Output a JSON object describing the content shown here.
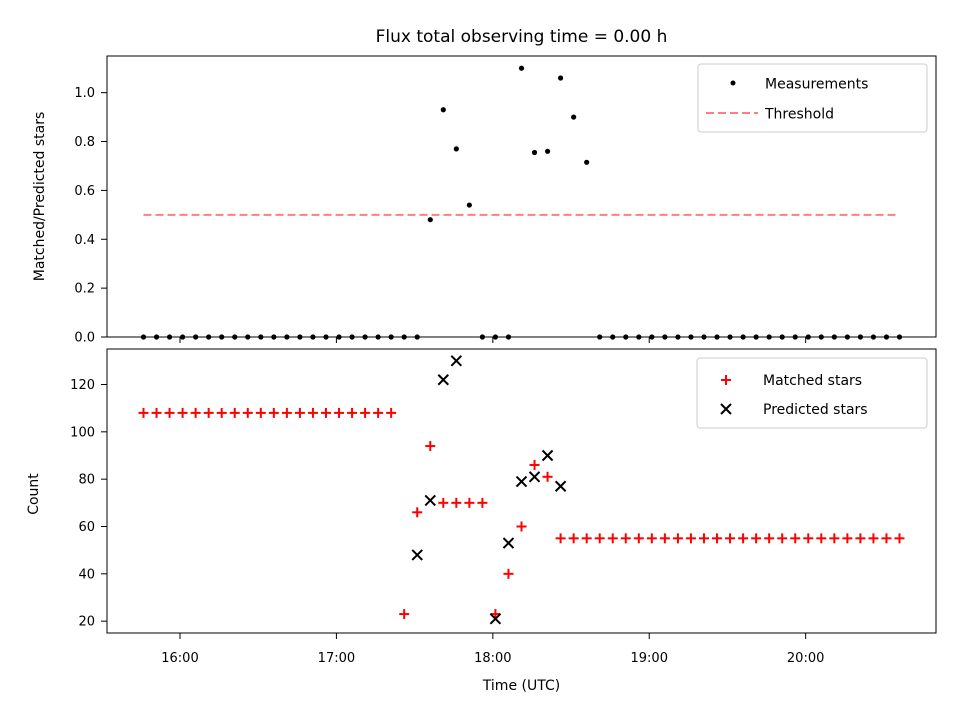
{
  "chart_data": [
    {
      "type": "scatter",
      "title": "Flux total observing time = 0.00 h",
      "xlabel": "",
      "ylabel": "Matched/Predicted stars",
      "xlim": [
        "15:32",
        "20:50"
      ],
      "ylim": [
        0,
        1.15
      ],
      "yticks": [
        0.0,
        0.2,
        0.4,
        0.6,
        0.8,
        1.0
      ],
      "ytick_labels": [
        "0.0",
        "0.2",
        "0.4",
        "0.6",
        "0.8",
        "1.0"
      ],
      "grid": false,
      "legend": "upper right",
      "series": [
        {
          "name": "Measurements",
          "kind": "scatter",
          "marker": "dot",
          "color": "#000000",
          "x": [
            "15:46",
            "15:51",
            "15:56",
            "16:01",
            "16:06",
            "16:11",
            "16:16",
            "16:21",
            "16:26",
            "16:31",
            "16:36",
            "16:41",
            "16:46",
            "16:51",
            "16:56",
            "17:01",
            "17:06",
            "17:11",
            "17:16",
            "17:21",
            "17:26",
            "17:31",
            "17:36",
            "17:41",
            "17:46",
            "17:51",
            "17:56",
            "18:01",
            "18:06",
            "18:11",
            "18:16",
            "18:21",
            "18:26",
            "18:31",
            "18:36",
            "18:41",
            "18:46",
            "18:51",
            "18:56",
            "19:01",
            "19:06",
            "19:11",
            "19:16",
            "19:21",
            "19:26",
            "19:31",
            "19:36",
            "19:41",
            "19:46",
            "19:51",
            "19:56",
            "20:01",
            "20:06",
            "20:11",
            "20:16",
            "20:21",
            "20:26",
            "20:31",
            "20:36"
          ],
          "y": [
            0,
            0,
            0,
            0,
            0,
            0,
            0,
            0,
            0,
            0,
            0,
            0,
            0,
            0,
            0,
            0,
            0,
            0,
            0,
            0,
            0,
            0,
            0.48,
            0.93,
            0.77,
            0.54,
            0,
            0,
            0,
            1.1,
            0.755,
            0.76,
            1.06,
            0.9,
            0.715,
            0,
            0,
            0,
            0,
            0,
            0,
            0,
            0,
            0,
            0,
            0,
            0,
            0,
            0,
            0,
            0,
            0,
            0,
            0,
            0,
            0,
            0,
            0,
            0
          ]
        },
        {
          "name": "Threshold",
          "kind": "line",
          "dash": "dashed",
          "color": "#ff7f7f",
          "x": [
            "15:46",
            "20:36"
          ],
          "y": [
            0.5,
            0.5
          ]
        }
      ]
    },
    {
      "type": "scatter",
      "title": "",
      "xlabel": "Time (UTC)",
      "ylabel": "Count",
      "xlim": [
        "15:32",
        "20:50"
      ],
      "ylim": [
        15,
        135
      ],
      "xticks": [
        "16:00",
        "17:00",
        "18:00",
        "19:00",
        "20:00"
      ],
      "yticks": [
        20,
        40,
        60,
        80,
        100,
        120
      ],
      "ytick_labels": [
        "20",
        "40",
        "60",
        "80",
        "100",
        "120"
      ],
      "grid": false,
      "legend": "upper right",
      "series": [
        {
          "name": "Matched stars",
          "kind": "scatter",
          "marker": "plus",
          "color": "#ff0000",
          "x": [
            "15:46",
            "15:51",
            "15:56",
            "16:01",
            "16:06",
            "16:11",
            "16:16",
            "16:21",
            "16:26",
            "16:31",
            "16:36",
            "16:41",
            "16:46",
            "16:51",
            "16:56",
            "17:01",
            "17:06",
            "17:11",
            "17:16",
            "17:21",
            "17:26",
            "17:31",
            "17:36",
            "17:41",
            "17:46",
            "17:51",
            "17:56",
            "18:01",
            "18:06",
            "18:11",
            "18:16",
            "18:21",
            "18:26",
            "18:31",
            "18:36",
            "18:41",
            "18:46",
            "18:51",
            "18:56",
            "19:01",
            "19:06",
            "19:11",
            "19:16",
            "19:21",
            "19:26",
            "19:31",
            "19:36",
            "19:41",
            "19:46",
            "19:51",
            "19:56",
            "20:01",
            "20:06",
            "20:11",
            "20:16",
            "20:21",
            "20:26",
            "20:31",
            "20:36"
          ],
          "y": [
            108,
            108,
            108,
            108,
            108,
            108,
            108,
            108,
            108,
            108,
            108,
            108,
            108,
            108,
            108,
            108,
            108,
            108,
            108,
            108,
            23,
            66,
            94,
            70,
            70,
            70,
            70,
            23,
            40,
            60,
            86,
            81,
            55,
            55,
            55,
            55,
            55,
            55,
            55,
            55,
            55,
            55,
            55,
            55,
            55,
            55,
            55,
            55,
            55,
            55,
            55,
            55,
            55,
            55,
            55,
            55,
            55,
            55,
            55
          ]
        },
        {
          "name": "Predicted stars",
          "kind": "scatter",
          "marker": "x",
          "color": "#000000",
          "x": [
            "17:31",
            "17:36",
            "17:41",
            "17:46",
            "18:01",
            "18:06",
            "18:11",
            "18:16",
            "18:21",
            "18:26"
          ],
          "y": [
            48,
            71,
            122,
            130,
            21,
            53,
            79,
            81,
            90,
            77
          ]
        }
      ]
    }
  ]
}
